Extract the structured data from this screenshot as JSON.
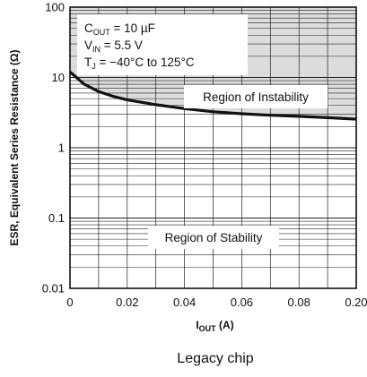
{
  "chart_data": {
    "type": "line",
    "x_scale": "linear",
    "y_scale": "log",
    "xlim": [
      0,
      0.2
    ],
    "ylim": [
      0.01,
      100
    ],
    "x_ticks": [
      "0",
      "0.02",
      "0.04",
      "0.06",
      "0.08",
      "0.20"
    ],
    "y_ticks": [
      "0.01",
      "0.1",
      "1",
      "10",
      "100"
    ],
    "xlabel": {
      "main": "I",
      "sub": "OUT",
      "unit": " (A)"
    },
    "ylabel": "ESR, Equivalent Series Resistance (Ω)",
    "grid": true,
    "series": [
      {
        "x": [
          0,
          0.005,
          0.01,
          0.015,
          0.02,
          0.03,
          0.04,
          0.05,
          0.06,
          0.07,
          0.08,
          0.09,
          0.1
        ],
        "values": [
          12,
          8.0,
          6.3,
          5.4,
          4.8,
          4.1,
          3.6,
          3.25,
          3.05,
          2.9,
          2.8,
          2.68,
          2.55
        ]
      }
    ],
    "conditions": [
      {
        "pre": "C",
        "sub": "OUT",
        "post": " = 10 µF"
      },
      {
        "pre": "V",
        "sub": "IN",
        "post": " = 5.5 V"
      },
      {
        "pre": "T",
        "sub": "J",
        "post": " = −40°C to 125°C"
      }
    ],
    "annotations": {
      "instability": "Region of Instability",
      "stability": "Region of Stability"
    },
    "colors": {
      "shade": "#dcdcdc",
      "curve": "#111111",
      "grid": "#222222"
    }
  },
  "caption": "Legacy chip"
}
